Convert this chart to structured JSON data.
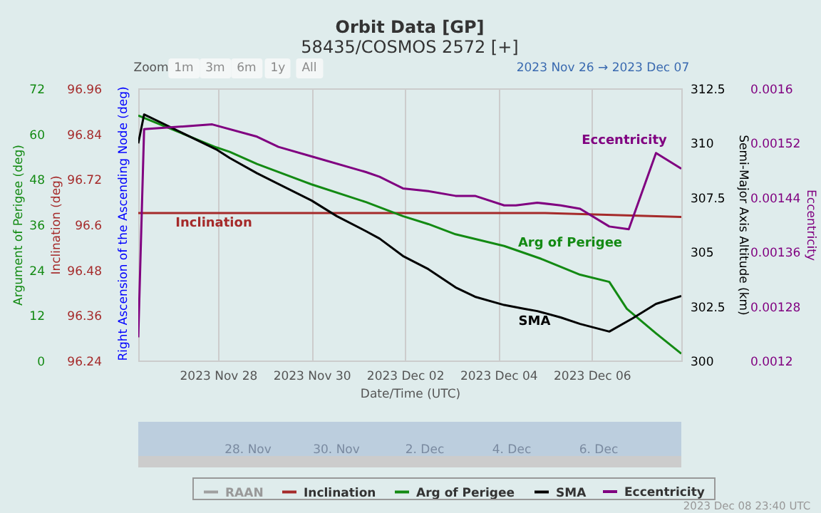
{
  "chart_data": [
    {
      "type": "line",
      "title": "Orbit Data [GP]",
      "subtitle": "58435/COSMOS 2572 [+]",
      "xlabel": "Date/Time (UTC)",
      "ylabel": "Argument of Perigee (deg)",
      "y2label": "Semi-Major Axis Altitude (km)",
      "y3label": "Inclination (deg)",
      "xlim": [
        "2023-11-26T07:00",
        "2023-12-07T22:00"
      ],
      "xticks": [
        {
          "value": "2023-11-28",
          "label": "2023 Nov 28"
        },
        {
          "value": "2023-11-30",
          "label": "2023 Nov 30"
        },
        {
          "value": "2023-12-02",
          "label": "2023 Dec 02"
        },
        {
          "value": "2023-12-04",
          "label": "2023 Dec 04"
        },
        {
          "value": "2023-12-06",
          "label": "2023 Dec 06"
        }
      ],
      "ylim": [
        0,
        72
      ],
      "yticks": [
        0,
        12,
        24,
        36,
        48,
        60,
        72
      ],
      "y2lim": [
        300,
        312.5
      ],
      "y2ticks": [
        300,
        302.5,
        305,
        307.5,
        310,
        312.5
      ],
      "y3lim": [
        96.24,
        96.96
      ],
      "y3ticks": [
        96.24,
        96.36,
        96.48,
        96.6,
        96.72,
        96.84,
        96.96
      ],
      "grid": "x",
      "legend": "bottom",
      "series": [
        {
          "name": "RAAN",
          "color": "#a0a0a0"
        },
        {
          "name": "Inclination",
          "color": "#a52a2a",
          "axis": "y3",
          "x": [
            "2023-11-26T07:00",
            "2023-12-02T00:00",
            "2023-12-05T00:00",
            "2023-12-07T22:00"
          ],
          "values": [
            96.63,
            96.63,
            96.63,
            96.62
          ]
        },
        {
          "name": "Arg of Perigee",
          "color": "#138a13",
          "x": [
            "2023-11-26T07:00",
            "2023-11-27T23:00",
            "2023-11-28T06:00",
            "2023-11-28T20:00",
            "2023-11-30T00:00",
            "2023-12-01T04:00",
            "2023-12-01T23:00",
            "2023-12-02T12:00",
            "2023-12-03T02:00",
            "2023-12-04T03:00",
            "2023-12-04T22:00",
            "2023-12-05T18:00",
            "2023-12-06T09:00",
            "2023-12-06T18:00",
            "2023-12-07T09:00",
            "2023-12-07T22:00"
          ],
          "values": [
            64.8,
            56.4,
            55.2,
            52.0,
            46.6,
            41.9,
            38.2,
            36.1,
            33.4,
            30.3,
            26.9,
            22.7,
            20.8,
            13.7,
            7.2,
            1.8
          ]
        },
        {
          "name": "SMA",
          "color": "#000000",
          "axis": "y2",
          "x": [
            "2023-11-26T07:00",
            "2023-11-26T10:00",
            "2023-11-27T23:00",
            "2023-11-28T06:00",
            "2023-11-28T20:00",
            "2023-11-30T00:00",
            "2023-11-30T13:00",
            "2023-12-01T04:00",
            "2023-12-01T11:00",
            "2023-12-01T23:00",
            "2023-12-02T12:00",
            "2023-12-03T02:00",
            "2023-12-03T12:00",
            "2023-12-04T03:00",
            "2023-12-04T13:00",
            "2023-12-04T20:00",
            "2023-12-05T08:00",
            "2023-12-05T18:00",
            "2023-12-06T09:00",
            "2023-12-06T21:00",
            "2023-12-07T09:00",
            "2023-12-07T22:00"
          ],
          "values": [
            309.97,
            311.3,
            309.7,
            309.3,
            308.6,
            307.35,
            306.63,
            305.94,
            305.6,
            304.8,
            304.2,
            303.36,
            302.93,
            302.55,
            302.38,
            302.27,
            301.98,
            301.68,
            301.33,
            301.94,
            302.6,
            302.96
          ]
        }
      ],
      "annotations": [
        "Zoom",
        "1m",
        "3m",
        "6m",
        "1y",
        "All",
        "2023 Nov 26 → 2023 Dec 07",
        "28. Nov",
        "30. Nov",
        "2. Dec",
        "4. Dec",
        "6. Dec",
        "2023 Dec 08 23:40 UTC",
        "Right Ascension of the Ascending Node (deg)",
        "Inclination",
        "Arg of Perigee",
        "SMA"
      ]
    },
    {
      "type": "line",
      "ylabel": "Eccentricity",
      "xlim": [
        "2023-11-26T07:00",
        "2023-12-07T22:00"
      ],
      "ylim": [
        0.0012,
        0.0016
      ],
      "yticks": [
        0.0012,
        0.00128,
        0.00136,
        0.00144,
        0.00152,
        0.0016
      ],
      "tick_labels": "y",
      "legend": "bottom",
      "series": [
        {
          "name": "Eccentricity",
          "color": "#800080",
          "x": [
            "2023-11-26T07:00",
            "2023-11-26T10:00",
            "2023-11-27T21:00",
            "2023-11-28T20:00",
            "2023-11-29T07:00",
            "2023-11-30T00:00",
            "2023-12-01T04:00",
            "2023-12-01T11:00",
            "2023-12-01T23:00",
            "2023-12-02T12:00",
            "2023-12-03T02:00",
            "2023-12-03T12:00",
            "2023-12-04T03:00",
            "2023-12-04T09:00",
            "2023-12-04T20:00",
            "2023-12-05T08:00",
            "2023-12-05T18:00",
            "2023-12-06T09:00",
            "2023-12-06T19:00",
            "2023-12-07T09:00",
            "2023-12-07T22:00"
          ],
          "values": [
            0.001234,
            0.00154,
            0.001547,
            0.001529,
            0.001514,
            0.0015,
            0.001477,
            0.00147,
            0.001453,
            0.001449,
            0.001442,
            0.001442,
            0.001428,
            0.001428,
            0.001432,
            0.001428,
            0.001423,
            0.001397,
            0.001393,
            0.001505,
            0.001482
          ]
        }
      ],
      "annotations": [
        "Eccentricity"
      ]
    }
  ]
}
